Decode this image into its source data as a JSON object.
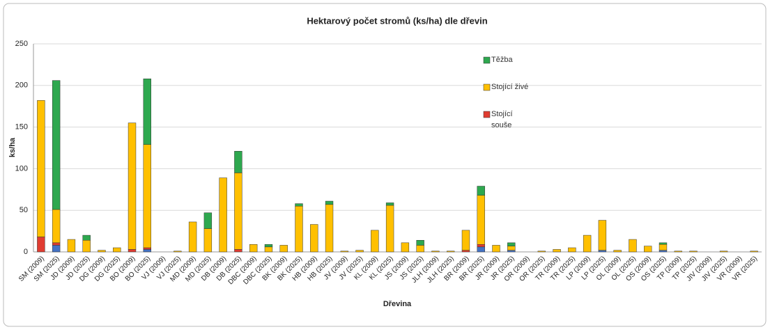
{
  "chart_data": {
    "type": "bar",
    "stacked": true,
    "title": "Hektarový počet stromů (ks/ha) dle dřevin",
    "x_label": "Dřevina",
    "y_label": "ks/ha",
    "categories": [
      "SM (2009)",
      "SM (2025)",
      "JD (2009)",
      "JD (2025)",
      "DG (2009)",
      "DG (2025)",
      "BO (2009)",
      "BO (2025)",
      "VJ (2009)",
      "VJ (2025)",
      "MD (2009)",
      "MD (2025)",
      "DB (2009)",
      "DB (2025)",
      "DBC (2009)",
      "DBC (2025)",
      "BK (2009)",
      "BK (2025)",
      "HB (2009)",
      "HB (2025)",
      "JV (2009)",
      "JV (2025)",
      "KL (2009)",
      "KL (2025)",
      "JS (2009)",
      "JS (2025)",
      "JLH (2009)",
      "JLH (2025)",
      "BR (2009)",
      "BR (2025)",
      "JR (2009)",
      "JR (2025)",
      "OR (2009)",
      "OR (2025)",
      "TR (2009)",
      "TR (2025)",
      "LP (2009)",
      "LP (2025)",
      "OL (2009)",
      "OL (2025)",
      "OS (2009)",
      "OS (2025)",
      "TP (2009)",
      "TP (2025)",
      "JIV (2009)",
      "JIV (2025)",
      "VR (2009)",
      "VR (2025)"
    ],
    "series": [
      {
        "name": null,
        "color": "#4472c4",
        "values": [
          0,
          8,
          0,
          0,
          0,
          0,
          0,
          3,
          0,
          0,
          0,
          0,
          0,
          0,
          0,
          0,
          0,
          0,
          0,
          0,
          0,
          0,
          0,
          0,
          0,
          0,
          0,
          0,
          0,
          6,
          0,
          2,
          0,
          0,
          0,
          0,
          0,
          2,
          0,
          0,
          0,
          2,
          0,
          0,
          0,
          0,
          0,
          0
        ]
      },
      {
        "name": "Stojící souše",
        "color": "#e03c31",
        "values": [
          18,
          3,
          0,
          0,
          0,
          0,
          3,
          2,
          0,
          0,
          0,
          0,
          0,
          3,
          0,
          0,
          0,
          0,
          0,
          0,
          0,
          0,
          0,
          0,
          0,
          0,
          0,
          0,
          2,
          3,
          0,
          0,
          0,
          0,
          0,
          0,
          0,
          0,
          0,
          0,
          0,
          0,
          0,
          0,
          0,
          0,
          0,
          0
        ]
      },
      {
        "name": "Stojící živé",
        "color": "#ffc000",
        "values": [
          164,
          40,
          15,
          14,
          2,
          5,
          152,
          124,
          0,
          1,
          36,
          28,
          89,
          92,
          9,
          6,
          8,
          55,
          33,
          57,
          1,
          2,
          26,
          56,
          11,
          8,
          1,
          1,
          24,
          59,
          8,
          5,
          0,
          1,
          3,
          5,
          20,
          36,
          2,
          15,
          7,
          7,
          1,
          1,
          0,
          1,
          0,
          1
        ]
      },
      {
        "name": "Těžba",
        "color": "#2ea84f",
        "values": [
          0,
          155,
          0,
          6,
          0,
          0,
          0,
          79,
          0,
          0,
          0,
          19,
          0,
          26,
          0,
          3,
          0,
          3,
          0,
          4,
          0,
          0,
          0,
          3,
          0,
          6,
          0,
          0,
          0,
          11,
          0,
          4,
          0,
          0,
          0,
          0,
          0,
          0,
          0,
          0,
          0,
          2,
          0,
          0,
          0,
          0,
          0,
          0
        ]
      }
    ],
    "legend_order": [
      3,
      2,
      1
    ],
    "ylim": [
      0,
      250
    ],
    "yticks": [
      0,
      50,
      100,
      150,
      200,
      250
    ],
    "grid": true
  }
}
